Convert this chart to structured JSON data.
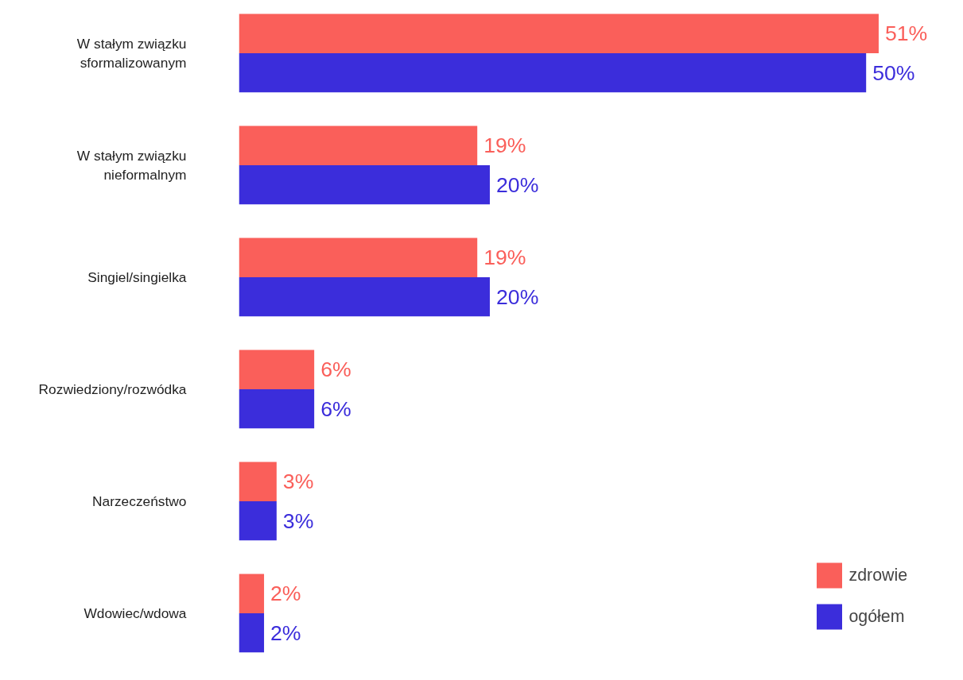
{
  "chart_data": {
    "type": "bar",
    "orientation": "horizontal",
    "categories": [
      "W stałym związku\nsformalizowanym",
      "W stałym związku\nnieformalnym",
      "Singiel/singielka",
      "Rozwiedziony/rozwódka",
      "Narzeczeństwo",
      "Wdowiec/wdowa"
    ],
    "series": [
      {
        "name": "zdrowie",
        "color": "#fa5f5a",
        "values": [
          51,
          19,
          19,
          6,
          3,
          2
        ],
        "value_labels": [
          "51%",
          "19%",
          "19%",
          "6%",
          "3%",
          "2%"
        ]
      },
      {
        "name": "ogółem",
        "color": "#3b2ddb",
        "values": [
          50,
          20,
          20,
          6,
          3,
          2
        ],
        "value_labels": [
          "50%",
          "20%",
          "20%",
          "6%",
          "3%",
          "2%"
        ]
      }
    ],
    "legend": "bottom right",
    "tick_labels": "y",
    "grid": false
  }
}
